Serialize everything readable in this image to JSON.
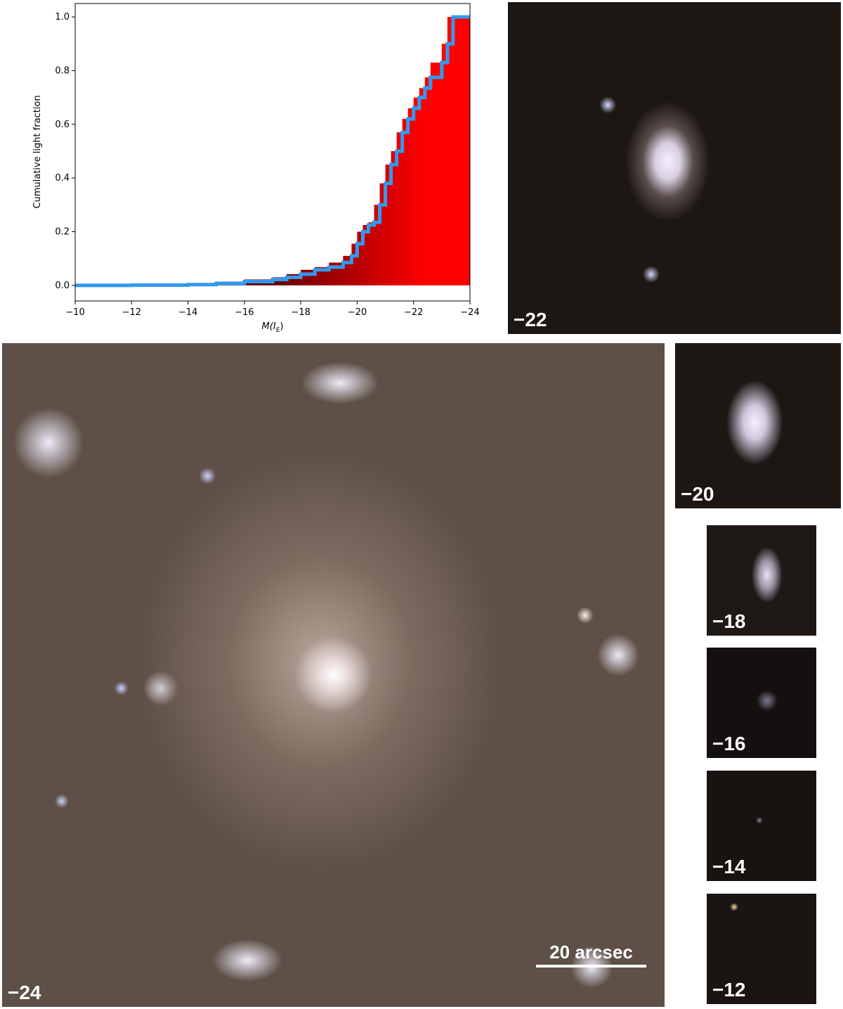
{
  "chart_data": {
    "type": "step",
    "ylabel": "Cumulative light fraction",
    "xlabel": [
      "M(",
      "I",
      "E",
      ")"
    ],
    "x": [
      -10,
      -12,
      -14,
      -15,
      -16,
      -17,
      -17.5,
      -18,
      -18.5,
      -19,
      -19.5,
      -19.8,
      -20,
      -20.2,
      -20.4,
      -20.6,
      -20.8,
      -21,
      -21.2,
      -21.4,
      -21.6,
      -21.8,
      -22,
      -22.2,
      -22.4,
      -22.6,
      -23,
      -23.2,
      -23.4,
      -24
    ],
    "values": [
      0,
      0.001,
      0.003,
      0.007,
      0.014,
      0.022,
      0.03,
      0.042,
      0.058,
      0.068,
      0.085,
      0.11,
      0.155,
      0.2,
      0.225,
      0.235,
      0.3,
      0.38,
      0.45,
      0.5,
      0.57,
      0.62,
      0.66,
      0.7,
      0.735,
      0.775,
      0.83,
      0.9,
      1.0,
      1.0
    ],
    "color": "#3399ee",
    "fill_colors": [
      "#5a0000",
      "#ff0000"
    ],
    "xlim": [
      -10,
      -24
    ],
    "ylim": [
      -0.058,
      1.05
    ],
    "xticks": [
      {
        "value": -10,
        "label": "−10"
      },
      {
        "value": -12,
        "label": "−12"
      },
      {
        "value": -14,
        "label": "−14"
      },
      {
        "value": -16,
        "label": "−16"
      },
      {
        "value": -18,
        "label": "−18"
      },
      {
        "value": -20,
        "label": "−20"
      },
      {
        "value": -22,
        "label": "−22"
      },
      {
        "value": -24,
        "label": "−24"
      }
    ],
    "yticks": [
      {
        "value": 0,
        "label": "0.0"
      },
      {
        "value": 0.2,
        "label": "0.2"
      },
      {
        "value": 0.4,
        "label": "0.4"
      },
      {
        "value": 0.6,
        "label": "0.6"
      },
      {
        "value": 0.8,
        "label": "0.8"
      },
      {
        "value": 1.0,
        "label": "1.0"
      }
    ]
  },
  "panels": [
    {
      "label": "−22"
    },
    {
      "label": "−24"
    },
    {
      "label": "−20"
    },
    {
      "label": "−18"
    },
    {
      "label": "−16"
    },
    {
      "label": "−14"
    },
    {
      "label": "−12"
    }
  ],
  "scale_bar": "20 arcsec"
}
